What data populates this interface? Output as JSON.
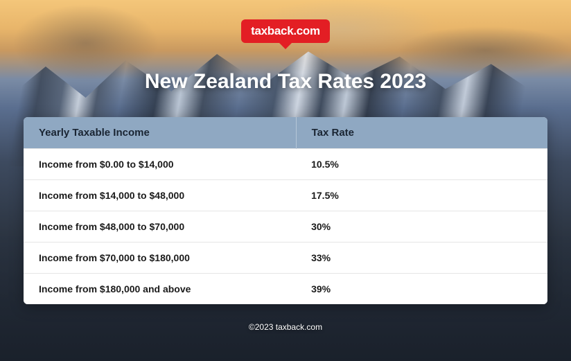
{
  "logo": {
    "text": "taxback.com",
    "bg": "#e31e24",
    "color": "#ffffff"
  },
  "title": "New Zealand Tax Rates 2023",
  "table": {
    "header_bg": "#8fa8c2",
    "header_text_color": "#1a2533",
    "columns": [
      "Yearly Taxable Income",
      "Tax Rate"
    ],
    "rows": [
      [
        "Income from $0.00 to $14,000",
        "10.5%"
      ],
      [
        "Income from $14,000 to $48,000",
        "17.5%"
      ],
      [
        "Income from $48,000 to $70,000",
        "30%"
      ],
      [
        "Income from $70,000 to $180,000",
        "33%"
      ],
      [
        "Income from $180,000 and above",
        "39%"
      ]
    ],
    "row_bg": "#ffffff",
    "border_color": "#e5e5e5"
  },
  "footer": "©2023 taxback.com"
}
